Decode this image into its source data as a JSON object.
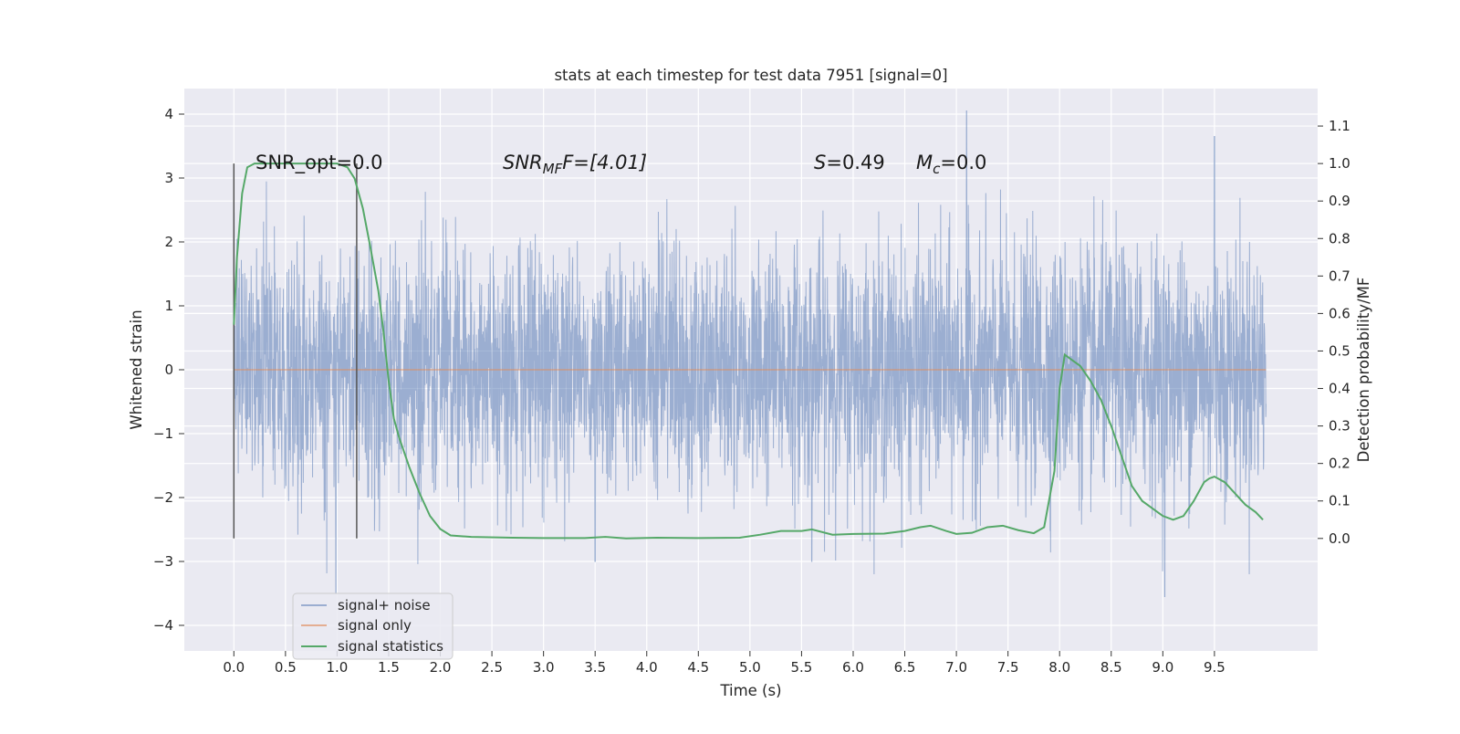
{
  "chart_data": {
    "type": "line",
    "title": "stats at each timestep for test data 7951 [signal=0]",
    "xlabel": "Time (s)",
    "ylabel_left": "Whitened strain",
    "ylabel_right": "Detection probability/MF",
    "xlim": [
      -0.48,
      10.5
    ],
    "ylim_left": [
      -4.4,
      4.4
    ],
    "ylim_right": [
      -0.3,
      1.2
    ],
    "xticks": [
      "0.0",
      "0.5",
      "1.0",
      "1.5",
      "2.0",
      "2.5",
      "3.0",
      "3.5",
      "4.0",
      "4.5",
      "5.0",
      "5.5",
      "6.0",
      "6.5",
      "7.0",
      "7.5",
      "8.0",
      "8.5",
      "9.0",
      "9.5"
    ],
    "yticks_left": [
      "4",
      "3",
      "2",
      "1",
      "0",
      "−1",
      "−2",
      "−3",
      "−4"
    ],
    "yticks_right": [
      "1.1",
      "1.0",
      "0.9",
      "0.8",
      "0.7",
      "0.6",
      "0.5",
      "0.4",
      "0.3",
      "0.2",
      "0.1",
      "0.0"
    ],
    "grid": true,
    "legend_position": "lower-left",
    "colors": {
      "noise": "#4c72b0",
      "signal": "#dd8452",
      "stats": "#55a868",
      "background": "#eaeaf2",
      "vline": "#555555"
    },
    "annotations": {
      "snr_opt": "SNR_opt=0.0",
      "snr_mf_prefix": "SNR",
      "snr_mf_sub": "MF",
      "snr_mf_suffix": "F=[4.01]",
      "s_label": "S",
      "s_value": "=0.49",
      "mc_label": "M",
      "mc_sub": "c",
      "mc_value": "=0.0"
    },
    "vertical_lines_x": [
      0.0,
      1.19
    ],
    "series": [
      {
        "name": "signal+ noise",
        "axis": "left",
        "description_range": [
          0.0,
          10.0
        ]
      },
      {
        "name": "signal only",
        "axis": "left",
        "constant": 0.0
      },
      {
        "name": "signal statistics",
        "axis": "right",
        "x": [
          0.0,
          0.03,
          0.08,
          0.13,
          0.2,
          0.3,
          0.5,
          0.8,
          1.0,
          1.1,
          1.17,
          1.25,
          1.32,
          1.4,
          1.45,
          1.5,
          1.55,
          1.6,
          1.7,
          1.8,
          1.9,
          2.0,
          2.1,
          2.3,
          2.7,
          3.0,
          3.4,
          3.6,
          3.8,
          4.1,
          4.5,
          4.9,
          5.1,
          5.3,
          5.5,
          5.6,
          5.8,
          6.0,
          6.3,
          6.5,
          6.65,
          6.75,
          6.9,
          7.0,
          7.15,
          7.3,
          7.45,
          7.6,
          7.75,
          7.85,
          7.95,
          8.0,
          8.05,
          8.1,
          8.2,
          8.3,
          8.4,
          8.5,
          8.6,
          8.7,
          8.8,
          8.9,
          9.0,
          9.1,
          9.2,
          9.3,
          9.4,
          9.45,
          9.5,
          9.6,
          9.7,
          9.8,
          9.9,
          9.97
        ],
        "y": [
          0.57,
          0.75,
          0.92,
          0.99,
          1.0,
          1.0,
          1.0,
          1.0,
          1.0,
          0.99,
          0.96,
          0.88,
          0.78,
          0.66,
          0.55,
          0.42,
          0.32,
          0.27,
          0.19,
          0.12,
          0.06,
          0.025,
          0.008,
          0.004,
          0.002,
          0.001,
          0.001,
          0.004,
          0.0,
          0.002,
          0.001,
          0.002,
          0.01,
          0.02,
          0.02,
          0.024,
          0.01,
          0.012,
          0.013,
          0.02,
          0.03,
          0.034,
          0.02,
          0.012,
          0.015,
          0.03,
          0.034,
          0.022,
          0.014,
          0.03,
          0.18,
          0.4,
          0.49,
          0.48,
          0.46,
          0.42,
          0.37,
          0.3,
          0.22,
          0.14,
          0.1,
          0.08,
          0.06,
          0.05,
          0.06,
          0.1,
          0.15,
          0.16,
          0.165,
          0.15,
          0.12,
          0.09,
          0.07,
          0.05
        ]
      }
    ]
  }
}
